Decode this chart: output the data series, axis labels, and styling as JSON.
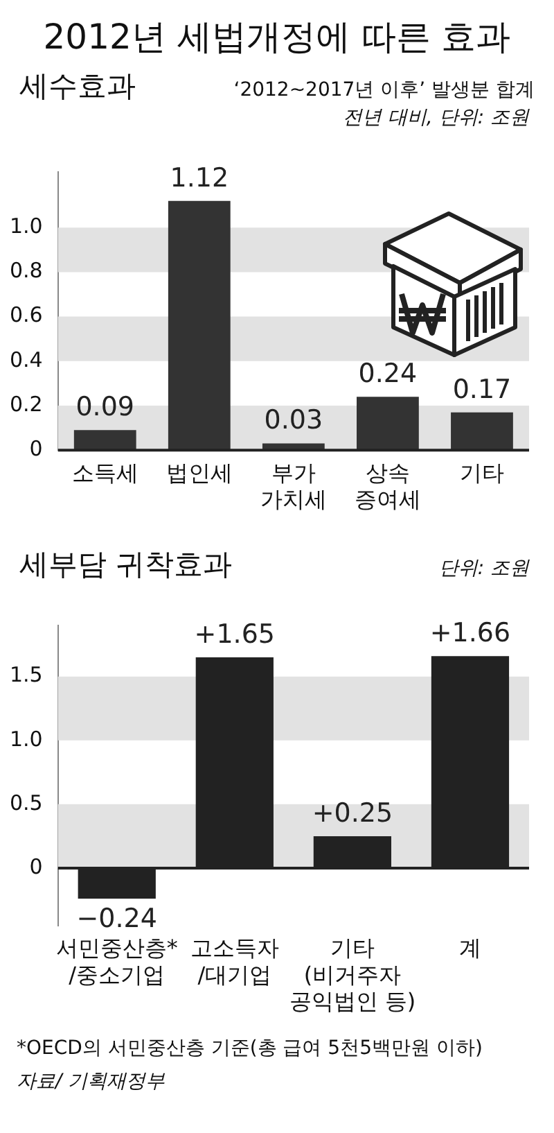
{
  "chart_data": [
    {
      "type": "bar",
      "title": "2012년 세법개정에 따른 효과",
      "subtitle": "세수효과",
      "annotations": [
        "‘2012~2017년 이후’ 발생분 합계",
        "전년 대비, 단위: 조원"
      ],
      "categories": [
        "소득세",
        "법인세",
        "부가\n가치세",
        "상속\n증여세",
        "기타"
      ],
      "values": [
        0.09,
        1.12,
        0.03,
        0.24,
        0.17
      ],
      "color": "#333333",
      "data_labels": true,
      "ylim": [
        0,
        1.25
      ],
      "yticks": [
        0,
        0.2,
        0.4,
        0.6,
        0.8,
        {
          "value": 1,
          "label": "1.0"
        }
      ],
      "legend": false,
      "bands": [
        {
          "axis": "y",
          "from": 0,
          "to": 0.2,
          "color": "#e2e2e2"
        },
        {
          "axis": "y",
          "from": 0.4,
          "to": 0.6,
          "color": "#e2e2e2"
        },
        {
          "axis": "y",
          "from": 0.8,
          "to": 1,
          "color": "#e2e2e2"
        }
      ]
    },
    {
      "type": "bar",
      "title": "세부담 귀착효과",
      "annotations": [
        "단위: 조원",
        "*OECD의 서민중산층 기준(총 급여 5천5백만원 이하)",
        "자료/ 기획재정부"
      ],
      "categories": [
        "서민중산층*\n/중소기업",
        "고소득자\n/대기업",
        "기타\n(비거주자\n공익법인 등)",
        "계"
      ],
      "values": [
        -0.24,
        1.65,
        0.25,
        1.66
      ],
      "color": "#222222",
      "value_labels": [
        "−0.24",
        "+1.65",
        "+0.25",
        "+1.66"
      ],
      "ylim": [
        -0.45,
        1.9
      ],
      "yticks": [
        0,
        0.5,
        {
          "value": 1,
          "label": "1.0"
        },
        1.5
      ],
      "legend": false,
      "bands": [
        {
          "axis": "y",
          "from": 0,
          "to": 0.5,
          "color": "#e2e2e2"
        },
        {
          "axis": "y",
          "from": 1,
          "to": 1.5,
          "color": "#e2e2e2"
        }
      ]
    }
  ]
}
